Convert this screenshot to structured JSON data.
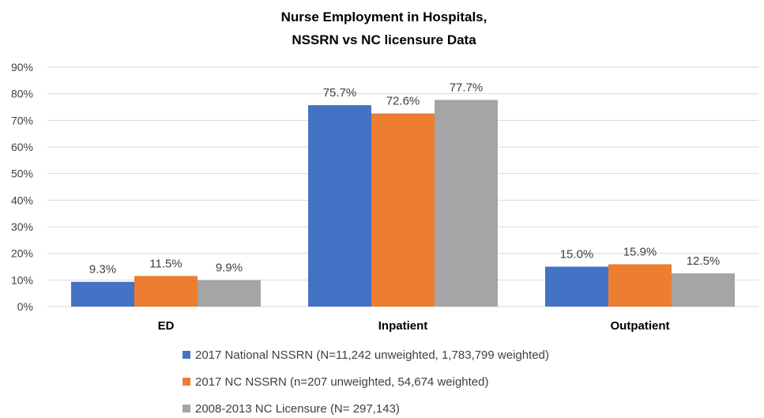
{
  "chart_data": {
    "type": "bar",
    "title_lines": [
      "Nurse Employment in Hospitals,",
      "NSSRN vs NC licensure Data"
    ],
    "categories": [
      "ED",
      "Inpatient",
      "Outpatient"
    ],
    "series": [
      {
        "name": "2017 National NSSRN (N=11,242 unweighted, 1,783,799 weighted)",
        "values": [
          9.3,
          75.7,
          15.0
        ],
        "color": "#4472C4"
      },
      {
        "name": "2017 NC NSSRN (n=207 unweighted, 54,674 weighted)",
        "values": [
          11.5,
          72.6,
          15.9
        ],
        "color": "#ED7D31"
      },
      {
        "name": "2008-2013 NC Licensure (N= 297,143)",
        "values": [
          9.9,
          77.7,
          12.5
        ],
        "color": "#A5A5A5"
      }
    ],
    "data_labels": [
      [
        "9.3%",
        "75.7%",
        "15.0%"
      ],
      [
        "11.5%",
        "72.6%",
        "15.9%"
      ],
      [
        "9.9%",
        "77.7%",
        "12.5%"
      ]
    ],
    "y_ticks": [
      "0%",
      "10%",
      "20%",
      "30%",
      "40%",
      "50%",
      "60%",
      "70%",
      "80%",
      "90%"
    ],
    "ylim": [
      0,
      90
    ],
    "grid": true,
    "legend_position": "bottom"
  }
}
